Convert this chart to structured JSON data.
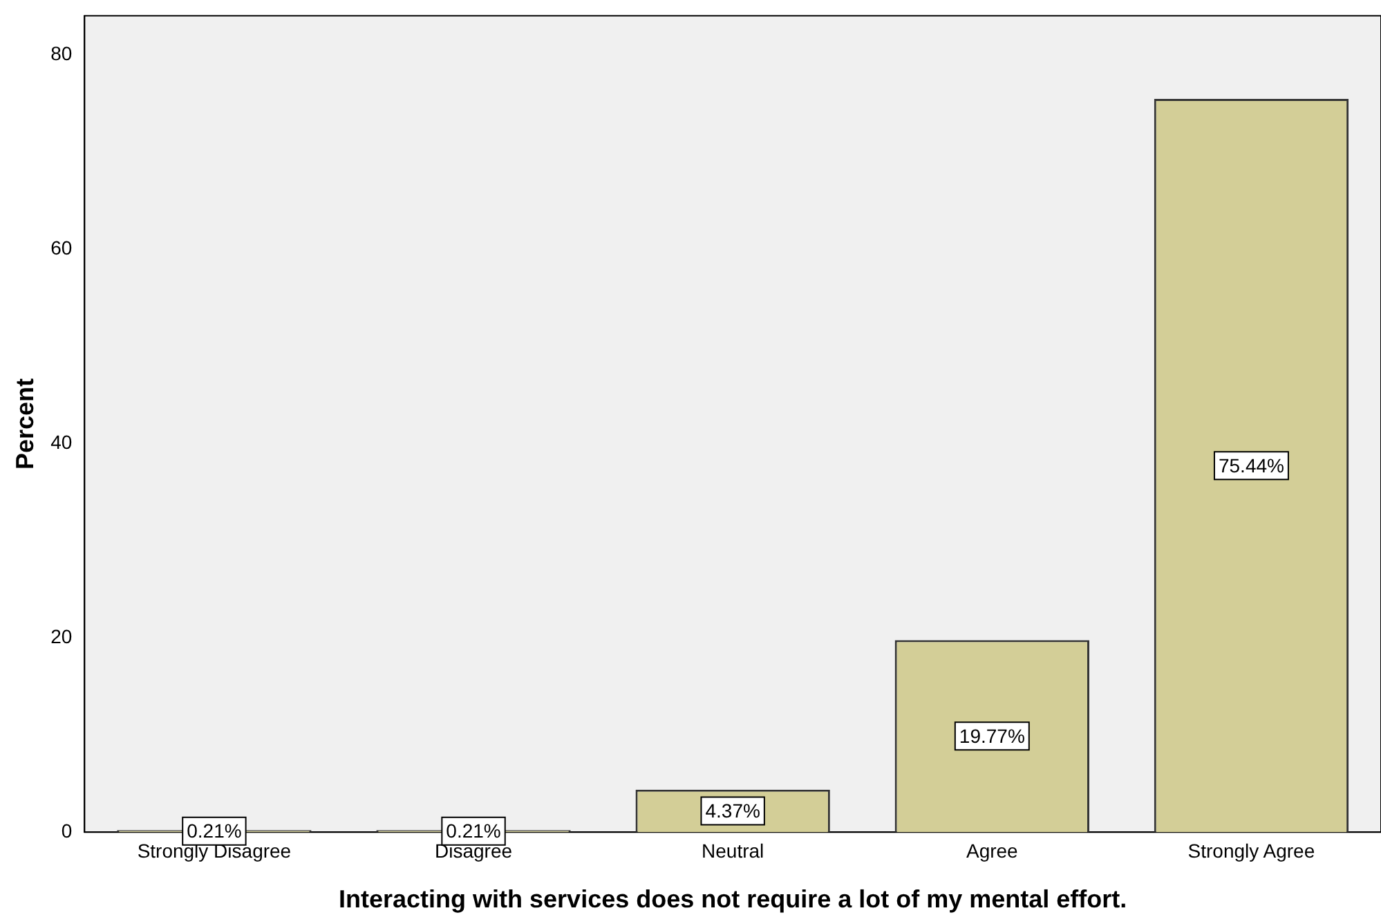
{
  "chart_data": {
    "type": "bar",
    "xlabel": "Interacting with services does not require a lot of my mental effort.",
    "ylabel": "Percent",
    "categories": [
      "Strongly Disagree",
      "Disagree",
      "Neutral",
      "Agree",
      "Strongly Agree"
    ],
    "values": [
      0.21,
      0.21,
      4.37,
      19.77,
      75.44
    ],
    "color": "#d3ce97",
    "value_labels": [
      "0.21%",
      "0.21%",
      "4.37%",
      "19.77%",
      "75.44%"
    ],
    "ylim": [
      0,
      84
    ],
    "yticks": [
      0,
      20,
      40,
      60,
      80
    ],
    "grid": false,
    "legend": false
  }
}
